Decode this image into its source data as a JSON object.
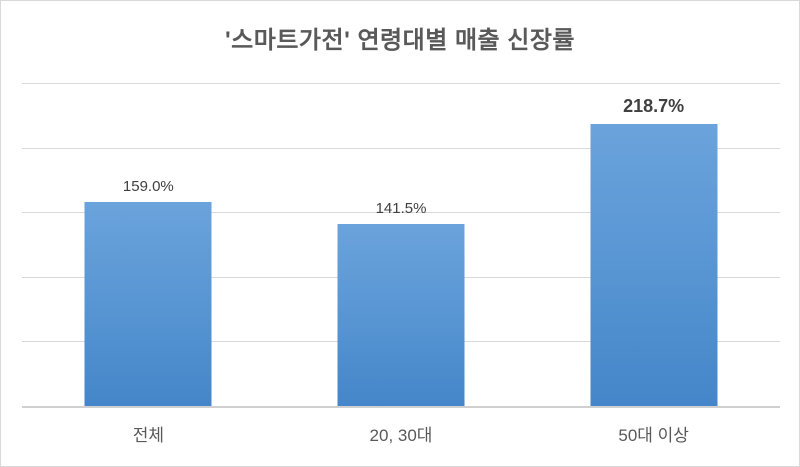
{
  "page": {
    "background_color": "#FFFFFF",
    "border_color": "#D9D9D9"
  },
  "chart_data": {
    "type": "bar",
    "title": "'스마트가전' 연령대별 매출 신장률",
    "categories": [
      "전체",
      "20, 30대",
      "50대 이상"
    ],
    "values": [
      159.0,
      141.5,
      218.7
    ],
    "value_labels": [
      "159.0%",
      "141.5%",
      "218.7%"
    ],
    "emphasized_index": 2,
    "xlabel": "",
    "ylabel": "",
    "ylim": [
      0,
      250
    ],
    "gridline_step": 50,
    "grid": true,
    "legend": false,
    "colors": {
      "bar_top": "#6BA3DC",
      "bar_bottom": "#4486C9",
      "gridline": "#D9D9D9",
      "axis_line": "#D0D0D0",
      "title_text": "#595959",
      "value_label_text": "#404040",
      "category_label_text": "#595959"
    }
  }
}
